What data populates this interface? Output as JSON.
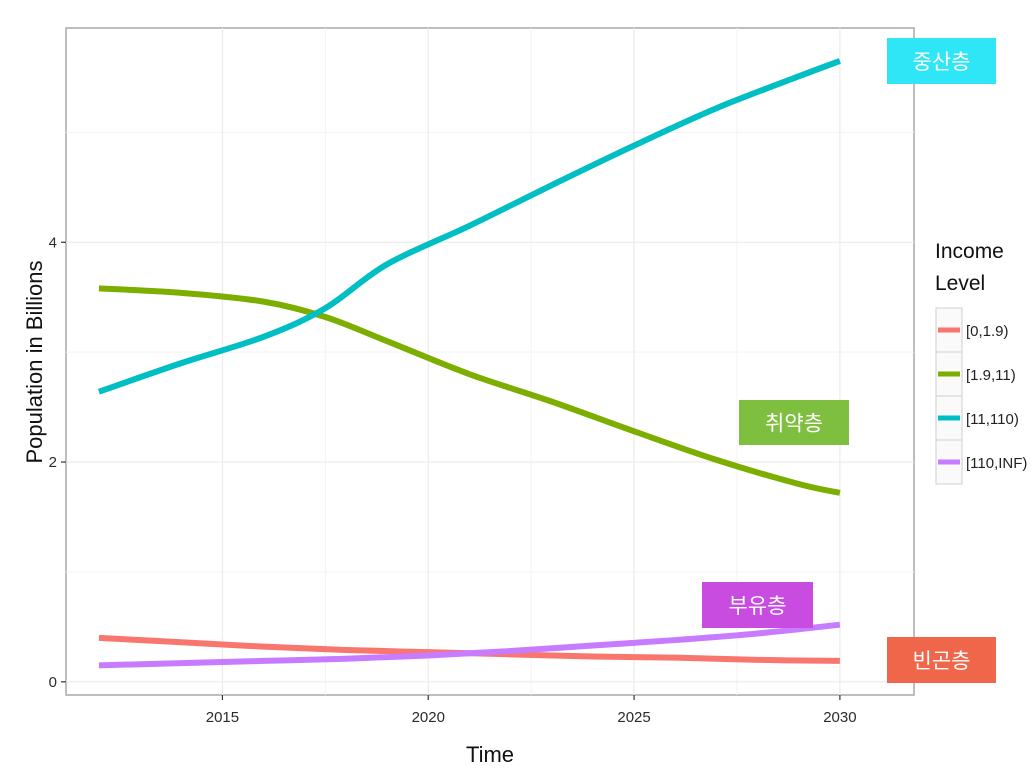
{
  "chart_data": {
    "type": "line",
    "title": "",
    "xlabel": "Time",
    "ylabel": "Population in Billions",
    "xlim": [
      2011.2,
      2031.8
    ],
    "ylim": [
      -0.12,
      5.95
    ],
    "x_ticks": [
      2015,
      2020,
      2025,
      2030
    ],
    "y_ticks": [
      0,
      2,
      4
    ],
    "grid": true,
    "legend_title": "Income\nLevel",
    "legend_position": "right",
    "series": [
      {
        "name": "[0,1.9)",
        "color": "#F8766D",
        "x": [
          2012,
          2014,
          2016,
          2018,
          2020,
          2022,
          2024,
          2026,
          2028,
          2030
        ],
        "values": [
          0.4,
          0.36,
          0.32,
          0.29,
          0.27,
          0.25,
          0.23,
          0.22,
          0.2,
          0.19
        ]
      },
      {
        "name": "[1.9,11)",
        "color": "#7CAE00",
        "x": [
          2012,
          2014,
          2016,
          2017.5,
          2019,
          2021,
          2023,
          2025,
          2027,
          2029,
          2030
        ],
        "values": [
          3.58,
          3.54,
          3.46,
          3.32,
          3.1,
          2.8,
          2.55,
          2.28,
          2.02,
          1.8,
          1.72
        ]
      },
      {
        "name": "[11,110)",
        "color": "#00BFC4",
        "x": [
          2012,
          2014,
          2016,
          2017.5,
          2019,
          2021,
          2023,
          2025,
          2027,
          2029,
          2030
        ],
        "values": [
          2.64,
          2.9,
          3.14,
          3.4,
          3.8,
          4.15,
          4.52,
          4.88,
          5.22,
          5.51,
          5.65
        ]
      },
      {
        "name": "[110,INF)",
        "color": "#C77CFF",
        "x": [
          2012,
          2014,
          2016,
          2018,
          2020,
          2022,
          2024,
          2026,
          2028,
          2030
        ],
        "values": [
          0.15,
          0.17,
          0.19,
          0.21,
          0.24,
          0.28,
          0.33,
          0.38,
          0.44,
          0.52
        ]
      }
    ],
    "annotations": [
      {
        "text": "중산층",
        "bg": "#2EE6F5"
      },
      {
        "text": "취약층",
        "bg": "#7FBF3F"
      },
      {
        "text": "부유층",
        "bg": "#C94CE0"
      },
      {
        "text": "빈곤층",
        "bg": "#F0664A"
      }
    ]
  }
}
